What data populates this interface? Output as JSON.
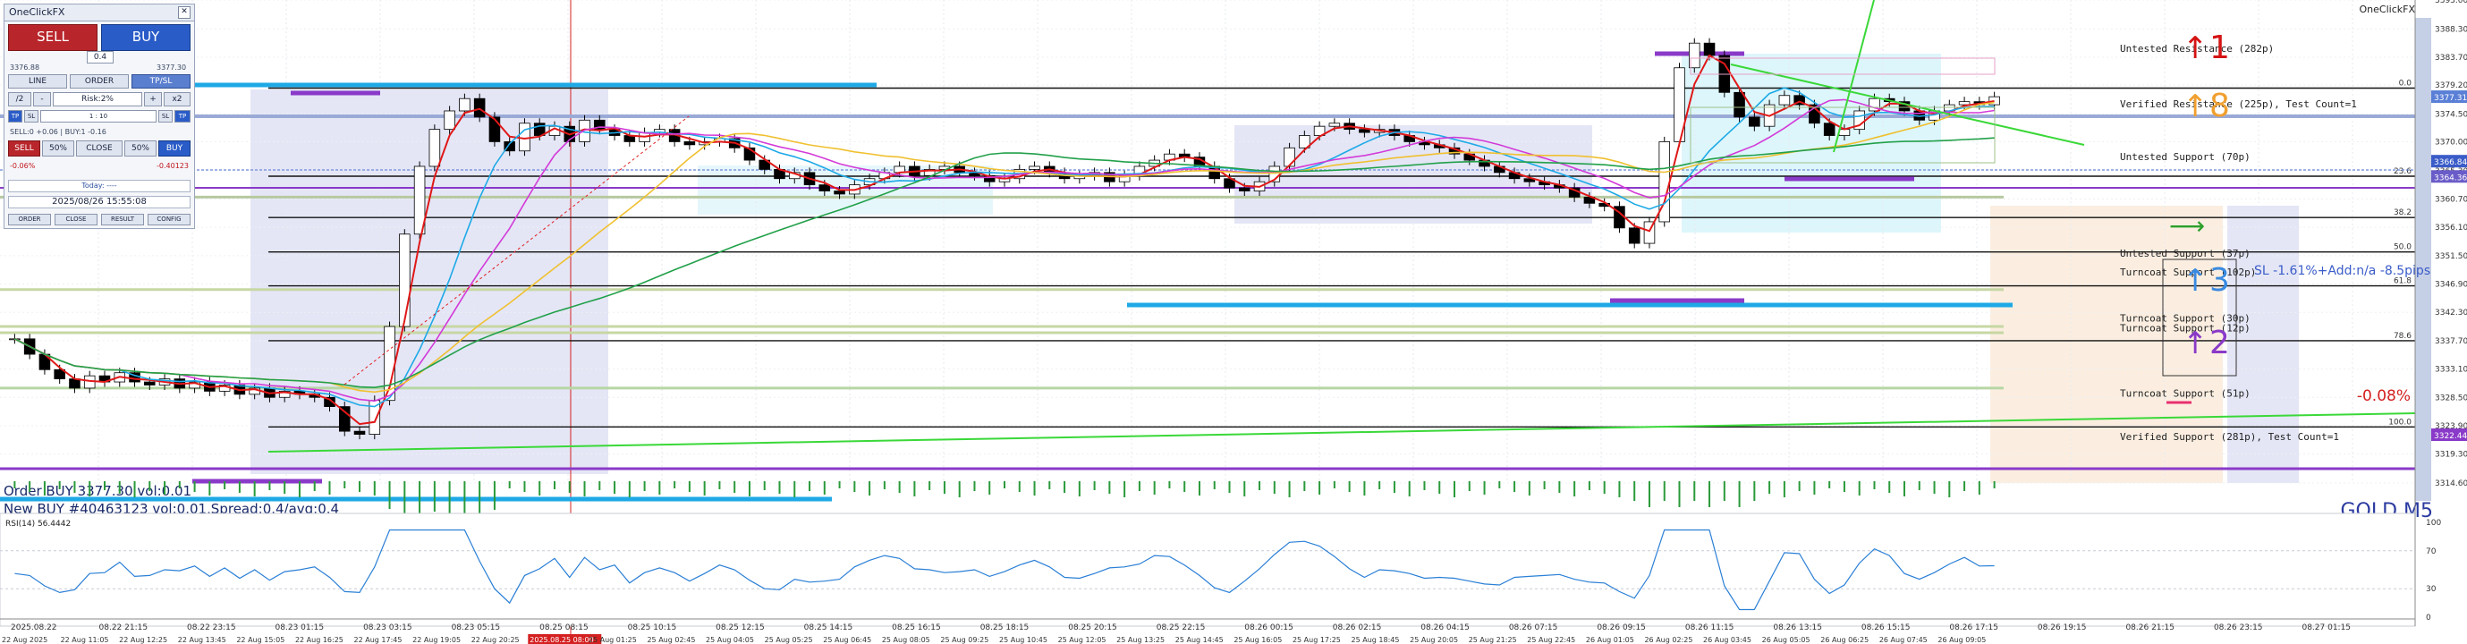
{
  "chart_data": {
    "type": "candlestick",
    "symbol_label": "GOLD M5",
    "indicator_label": "RSI(14) 56.4442",
    "top_right_label": "OneClickFX",
    "price_axis": {
      "min": 3314.6,
      "max": 3393.0,
      "ticks": [
        "3393.00",
        "3388.30",
        "3383.70",
        "3379.20",
        "3374.50",
        "3370.00",
        "3365.30",
        "3360.70",
        "3356.10",
        "3351.50",
        "3346.90",
        "3342.30",
        "3337.70",
        "3333.10",
        "3328.50",
        "3323.90",
        "3319.30",
        "3314.60"
      ]
    },
    "rsi_axis": {
      "min": 0,
      "max": 100,
      "ticks": [
        "100",
        "70",
        "30",
        "0"
      ]
    },
    "price_badges": [
      {
        "text": "3377.31",
        "price": 3377.31,
        "color": "#5a7fd6"
      },
      {
        "text": "3366.84",
        "price": 3366.84,
        "color": "#3a5cc8"
      },
      {
        "text": "3364.36",
        "price": 3364.36,
        "color": "#6a5cc8"
      },
      {
        "text": "3322.44",
        "price": 3322.44,
        "color": "#8a3ac8"
      }
    ],
    "time_axis_top": [
      "2025.08.22",
      "08.22 21:15",
      "08.22 23:15",
      "08.23 01:15",
      "08.23 03:15",
      "08.23 05:15",
      "08.25 08:15",
      "08.25 10:15",
      "08.25 12:15",
      "08.25 14:15",
      "08.25 16:15",
      "08.25 18:15",
      "08.25 20:15",
      "08.25 22:15",
      "08.26 00:15",
      "08.26 02:15",
      "08.26 04:15",
      "08.26 07:15",
      "08.26 09:15",
      "08.26 11:15",
      "08.26 13:15",
      "08.26 15:15",
      "08.26 17:15",
      "08.26 19:15",
      "08.26 21:15",
      "08.26 23:15",
      "08.27 01:15"
    ],
    "time_axis_bottom": [
      "22 Aug 2025",
      "22 Aug 11:05",
      "22 Aug 12:25",
      "22 Aug 13:45",
      "22 Aug 15:05",
      "22 Aug 16:25",
      "22 Aug 17:45",
      "22 Aug 19:05",
      "22 Aug 20:25",
      "2025.08.25 08:00",
      "25 Aug 01:25",
      "25 Aug 02:45",
      "25 Aug 04:05",
      "25 Aug 05:25",
      "25 Aug 06:45",
      "25 Aug 08:05",
      "25 Aug 09:25",
      "25 Aug 10:45",
      "25 Aug 12:05",
      "25 Aug 13:25",
      "25 Aug 14:45",
      "25 Aug 16:05",
      "25 Aug 17:25",
      "25 Aug 18:45",
      "25 Aug 20:05",
      "25 Aug 21:25",
      "25 Aug 22:45",
      "26 Aug 01:05",
      "26 Aug 02:25",
      "26 Aug 03:45",
      "26 Aug 05:05",
      "26 Aug 06:25",
      "26 Aug 07:45",
      "26 Aug 09:05"
    ],
    "zone_labels": [
      {
        "text": "Untested Resistance (282p)",
        "price": 3384.6
      },
      {
        "text": "Verified Resistance (225p), Test Count=1",
        "price": 3375.6
      },
      {
        "text": "Untested Support (70p)",
        "price": 3367.0
      },
      {
        "text": "Untested Support (37p)",
        "price": 3351.3
      },
      {
        "text": "Turncoat Support (102p)",
        "price": 3348.3
      },
      {
        "text": "Turncoat Support (30p)",
        "price": 3340.8
      },
      {
        "text": "Turncoat Support (12p)",
        "price": 3339.2
      },
      {
        "text": "Turncoat Support (51p)",
        "price": 3328.6
      },
      {
        "text": "Verified Support (281p), Test Count=1",
        "price": 3321.6
      }
    ],
    "fib_labels": [
      {
        "text": "0.0",
        "price": 3378.7
      },
      {
        "text": "23.6",
        "price": 3364.4
      },
      {
        "text": "38.2",
        "price": 3357.7
      },
      {
        "text": "50.0",
        "price": 3352.1
      },
      {
        "text": "61.8",
        "price": 3346.6
      },
      {
        "text": "78.6",
        "price": 3337.7
      },
      {
        "text": "100.0",
        "price": 3323.7
      }
    ],
    "signals": [
      {
        "text": "1",
        "color": "#d41414"
      },
      {
        "text": "8",
        "color": "#f0a030"
      },
      {
        "text": "3",
        "color": "#3a8ae0"
      },
      {
        "text": "2",
        "color": "#8a3ac8"
      }
    ],
    "sl_text": "SL -1.61%+Add:n/a -8.5pips",
    "pct_text": "-0.08%",
    "order_lines": [
      "Order BUY 3377.30 vol:0.01",
      "New BUY #40463123 vol:0.01,Spread:0.4/avg:0.4"
    ],
    "closes": [
      3338.0,
      3335.5,
      3333.0,
      3331.5,
      3330.0,
      3332.0,
      3331.0,
      3332.5,
      3331.0,
      3330.5,
      3331.5,
      3330.0,
      3331.0,
      3329.5,
      3330.5,
      3329.0,
      3330.0,
      3328.5,
      3329.5,
      3329.0,
      3328.5,
      3327.0,
      3323.0,
      3322.5,
      3328.0,
      3340.0,
      3355.0,
      3366.0,
      3372.0,
      3375.0,
      3377.0,
      3374.0,
      3370.0,
      3368.5,
      3373.0,
      3371.0,
      3372.5,
      3370.0,
      3373.5,
      3372.0,
      3371.0,
      3370.0,
      3371.5,
      3372.0,
      3370.0,
      3369.5,
      3370.0,
      3370.5,
      3369.0,
      3367.0,
      3365.5,
      3364.0,
      3365.0,
      3363.0,
      3362.0,
      3361.5,
      3363.0,
      3364.0,
      3365.0,
      3366.0,
      3364.5,
      3365.5,
      3366.0,
      3365.0,
      3364.5,
      3363.5,
      3364.0,
      3365.5,
      3366.0,
      3365.0,
      3364.0,
      3364.5,
      3365.0,
      3363.5,
      3364.5,
      3366.0,
      3367.0,
      3368.0,
      3367.5,
      3366.0,
      3364.0,
      3362.5,
      3362.0,
      3363.5,
      3366.0,
      3369.0,
      3371.0,
      3372.5,
      3373.0,
      3372.0,
      3371.5,
      3372.0,
      3371.0,
      3370.0,
      3369.5,
      3369.0,
      3368.0,
      3367.0,
      3366.0,
      3365.0,
      3364.0,
      3363.5,
      3363.0,
      3362.5,
      3361.0,
      3360.0,
      3359.5,
      3356.0,
      3353.5,
      3357.0,
      3370.0,
      3382.0,
      3386.0,
      3384.0,
      3378.0,
      3374.0,
      3372.5,
      3376.0,
      3377.5,
      3376.0,
      3373.0,
      3371.0,
      3372.0,
      3375.0,
      3377.0,
      3376.5,
      3375.0,
      3373.5,
      3375.0,
      3376.0,
      3376.5,
      3376.0,
      3377.3
    ]
  }
}
